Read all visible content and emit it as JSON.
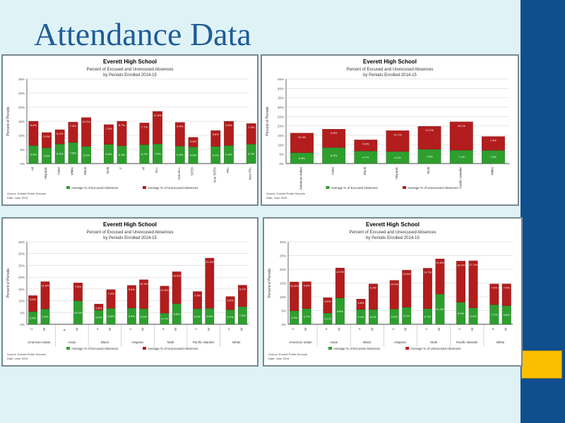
{
  "slide": {
    "title": "Attendance Data",
    "accent_color": "#fcbf00",
    "sidebar_color": "#0f4f8e"
  },
  "chart_data": [
    {
      "type": "bar",
      "stacked": true,
      "title": "Everett High School",
      "subtitle": "Percent of Excused and Unexcused Absences by Periods Enrolled 2014-15",
      "ylabel": "Percent of Periods",
      "ylim": [
        0,
        30
      ],
      "yticks": [
        "0%",
        "5%",
        "10%",
        "15%",
        "20%",
        "25%",
        "30%"
      ],
      "categories": [
        "All",
        "Hispanic",
        "Asian",
        "White",
        "Black",
        "Multi",
        "F",
        "M",
        "ELL",
        "Non-ELL",
        "SPED",
        "Non-SPED",
        "FRL",
        "Non-FRL"
      ],
      "groups": [
        [
          0,
          4
        ],
        [
          5,
          6
        ],
        [
          7,
          8
        ],
        [
          9,
          10
        ],
        [
          11,
          12
        ]
      ],
      "series": [
        {
          "name": "Average % of Excused Absences",
          "color": "#2e9e2e",
          "values": [
            6.4,
            5.6,
            6.9,
            7.5,
            6.1,
            6.8,
            6.3,
            6.7,
            7.0,
            6.2,
            5.9,
            6.1,
            6.4,
            6.9
          ]
        },
        {
          "name": "Average % of Unexcused Absences",
          "color": "#b31d1d",
          "values": [
            8.6,
            5.4,
            5.1,
            7.2,
            10.2,
            7.0,
            8.7,
            7.7,
            11.5,
            8.4,
            3.4,
            5.6,
            8.6,
            7.3
          ]
        }
      ],
      "show_legend": true,
      "legend_position": "bottom",
      "footnotes": [
        "Source: Everett Public Schools",
        "Date: June 2015"
      ]
    },
    {
      "type": "bar",
      "stacked": true,
      "title": "Everett High School",
      "subtitle": "Percent of Excused and Unexcused Absences by Periods Enrolled 2014-15",
      "ylabel": "Percent of Periods",
      "ylim": [
        0,
        45
      ],
      "yticks": [
        "0%",
        "5%",
        "10%",
        "15%",
        "20%",
        "25%",
        "30%",
        "35%",
        "40%",
        "45%"
      ],
      "categories": [
        "American Indian",
        "Asian",
        "Black",
        "Hispanic",
        "Multi",
        "Pacific Islander",
        "White"
      ],
      "groups": [],
      "series": [
        {
          "name": "Average % of Excused Absences",
          "color": "#2e9e2e",
          "values": [
            5.8,
            8.5,
            6.7,
            6.4,
            7.6,
            7.1,
            7.0
          ]
        },
        {
          "name": "Average % of Unexcused Absences",
          "color": "#b31d1d",
          "values": [
            10.4,
            9.8,
            5.9,
            11.1,
            12.2,
            15.1,
            7.4
          ]
        }
      ],
      "show_legend": true,
      "legend_position": "bottom",
      "footnotes": [
        "Source: Everett Public Schools",
        "Date: June 2015"
      ]
    },
    {
      "type": "bar",
      "stacked": true,
      "title": "Everett High School",
      "subtitle": "Percent of Excused and Unexcused Absences by Periods Enrolled 2014-15",
      "ylabel": "Percent of Periods",
      "ylim": [
        0,
        35
      ],
      "yticks": [
        "0%",
        "5%",
        "10%",
        "15%",
        "20%",
        "25%",
        "30%",
        "35%"
      ],
      "categories": [
        "F",
        "M",
        "F",
        "M",
        "F",
        "M",
        "F",
        "M",
        "F",
        "M",
        "F",
        "M",
        "F",
        "M"
      ],
      "groups": [
        [
          0,
          1
        ],
        [
          2,
          3
        ],
        [
          4,
          5
        ],
        [
          6,
          7
        ],
        [
          8,
          9
        ],
        [
          10,
          11
        ],
        [
          12,
          13
        ]
      ],
      "group_labels": [
        "American Indian",
        "Asian",
        "Black",
        "Hispanic",
        "Multi",
        "Pacific Islander",
        "White"
      ],
      "series": [
        {
          "name": "Average % of Excused Absences",
          "color": "#2e9e2e",
          "values": [
            5.4,
            6.5,
            0,
            10.0,
            6.0,
            6.8,
            6.9,
            6.6,
            4.7,
            8.8,
            6.6,
            6.8,
            6.2,
            7.5
          ]
        },
        {
          "name": "Average % of Unexcused Absences",
          "color": "#b31d1d",
          "values": [
            6.8,
            11.6,
            0,
            7.6,
            2.6,
            7.9,
            9.6,
            12.3,
            11.5,
            13.5,
            7.3,
            21.3,
            5.6,
            9.1
          ]
        }
      ],
      "show_legend": true,
      "legend_position": "bottom",
      "footnotes": [
        "Source: Everett Public Schools",
        "Date: June 2015"
      ]
    },
    {
      "type": "bar",
      "stacked": true,
      "title": "Everett High School",
      "subtitle": "Percent of Excused and Unexcused Absences by Periods Enrolled 2014-15",
      "ylabel": "Percent of Periods",
      "ylim": [
        0,
        30
      ],
      "yticks": [
        "0%",
        "5%",
        "10%",
        "15%",
        "20%",
        "25%",
        "30%"
      ],
      "categories": [
        "F",
        "M",
        "F",
        "M",
        "F",
        "M",
        "F",
        "M",
        "F",
        "M",
        "F",
        "M",
        "F",
        "M"
      ],
      "groups": [
        [
          0,
          1
        ],
        [
          2,
          3
        ],
        [
          4,
          5
        ],
        [
          6,
          7
        ],
        [
          8,
          9
        ],
        [
          10,
          11
        ],
        [
          12,
          13
        ]
      ],
      "group_labels": [
        "American Indian",
        "Asian",
        "Black",
        "Hispanic",
        "Multi",
        "Pacific Islander",
        "White"
      ],
      "series": [
        {
          "name": "Average % of Excused Absences",
          "color": "#2e9e2e",
          "values": [
            4.9,
            5.7,
            4.1,
            9.6,
            5.4,
            5.4,
            5.6,
            6.2,
            5.7,
            11.0,
            8.0,
            6.0,
            7.1,
            6.8
          ]
        },
        {
          "name": "Average % of Unexcused Absences",
          "color": "#b31d1d",
          "values": [
            10.5,
            9.8,
            5.6,
            10.9,
            3.8,
            9.3,
            10.4,
            13.5,
            14.7,
            12.8,
            15.0,
            17.1,
            7.6,
            7.9
          ]
        }
      ],
      "show_legend": true,
      "legend_position": "bottom",
      "footnotes": [
        "Source: Everett Public Schools",
        "Date: June 2015"
      ]
    }
  ]
}
